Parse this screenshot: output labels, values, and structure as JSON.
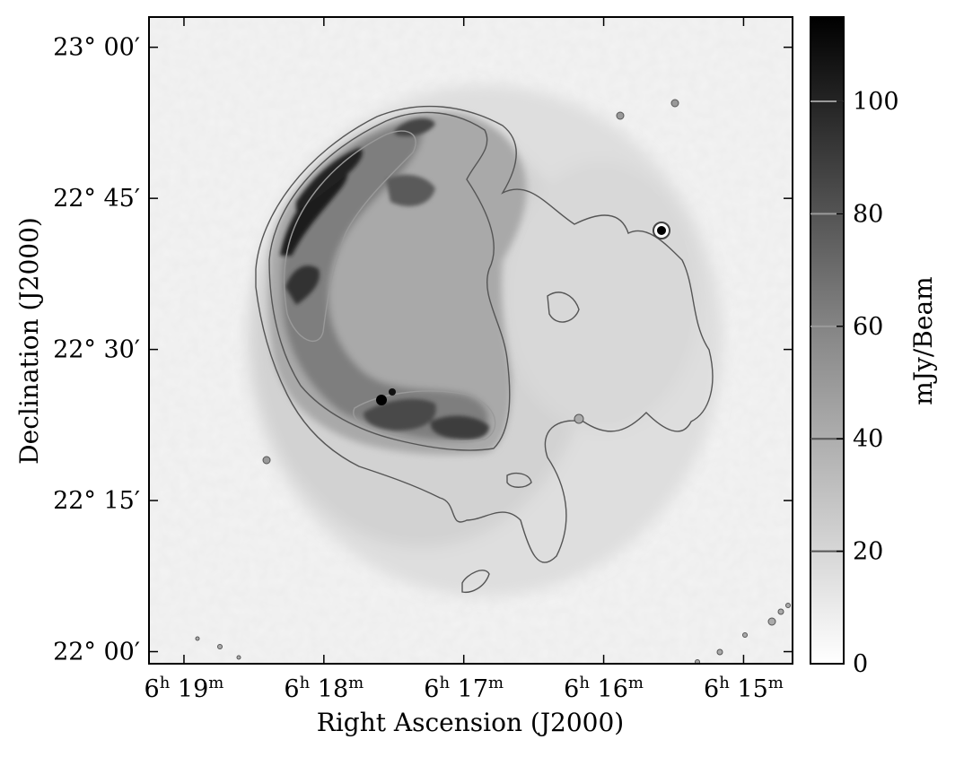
{
  "chart_data": {
    "type": "heatmap",
    "title": "",
    "xlabel": "Right Ascension (J2000)",
    "ylabel": "Declination (J2000)",
    "x_ticks": [
      {
        "label_h": "6",
        "label_m": "19",
        "ra_min": 379
      },
      {
        "label_h": "6",
        "label_m": "18",
        "ra_min": 378
      },
      {
        "label_h": "6",
        "label_m": "17",
        "ra_min": 377
      },
      {
        "label_h": "6",
        "label_m": "16",
        "ra_min": 376
      },
      {
        "label_h": "6",
        "label_m": "15",
        "ra_min": 375
      }
    ],
    "y_ticks": [
      {
        "label": "23° 00′",
        "dec_arcmin": 60
      },
      {
        "label": "22° 45′",
        "dec_arcmin": 45
      },
      {
        "label": "22° 30′",
        "dec_arcmin": 30
      },
      {
        "label": "22° 15′",
        "dec_arcmin": 15
      },
      {
        "label": "22° 00′",
        "dec_arcmin": 0
      }
    ],
    "x_range_ra_min": [
      379.25,
      374.65
    ],
    "y_range_dec_arcmin": [
      -1.2,
      63
    ],
    "colorbar": {
      "label": "mJy/Beam",
      "range": [
        0,
        115
      ],
      "ticks": [
        0,
        20,
        40,
        60,
        80,
        100
      ],
      "contour_levels": [
        20,
        40,
        60,
        80,
        100
      ],
      "colormap": "gray_r"
    },
    "contour_color": "#555555",
    "point_sources": [
      {
        "ra_min": 375.55,
        "dec_arcmin": 41.5,
        "intensity": 115
      },
      {
        "ra_min": 377.6,
        "dec_arcmin": 24.5,
        "intensity": 115
      },
      {
        "ra_min": 375.9,
        "dec_arcmin": 52.5,
        "intensity": 30
      },
      {
        "ra_min": 375.5,
        "dec_arcmin": 54,
        "intensity": 30
      },
      {
        "ra_min": 378.55,
        "dec_arcmin": 19.5,
        "intensity": 30
      },
      {
        "ra_min": 376.45,
        "dec_arcmin": 23,
        "intensity": 28
      }
    ]
  }
}
